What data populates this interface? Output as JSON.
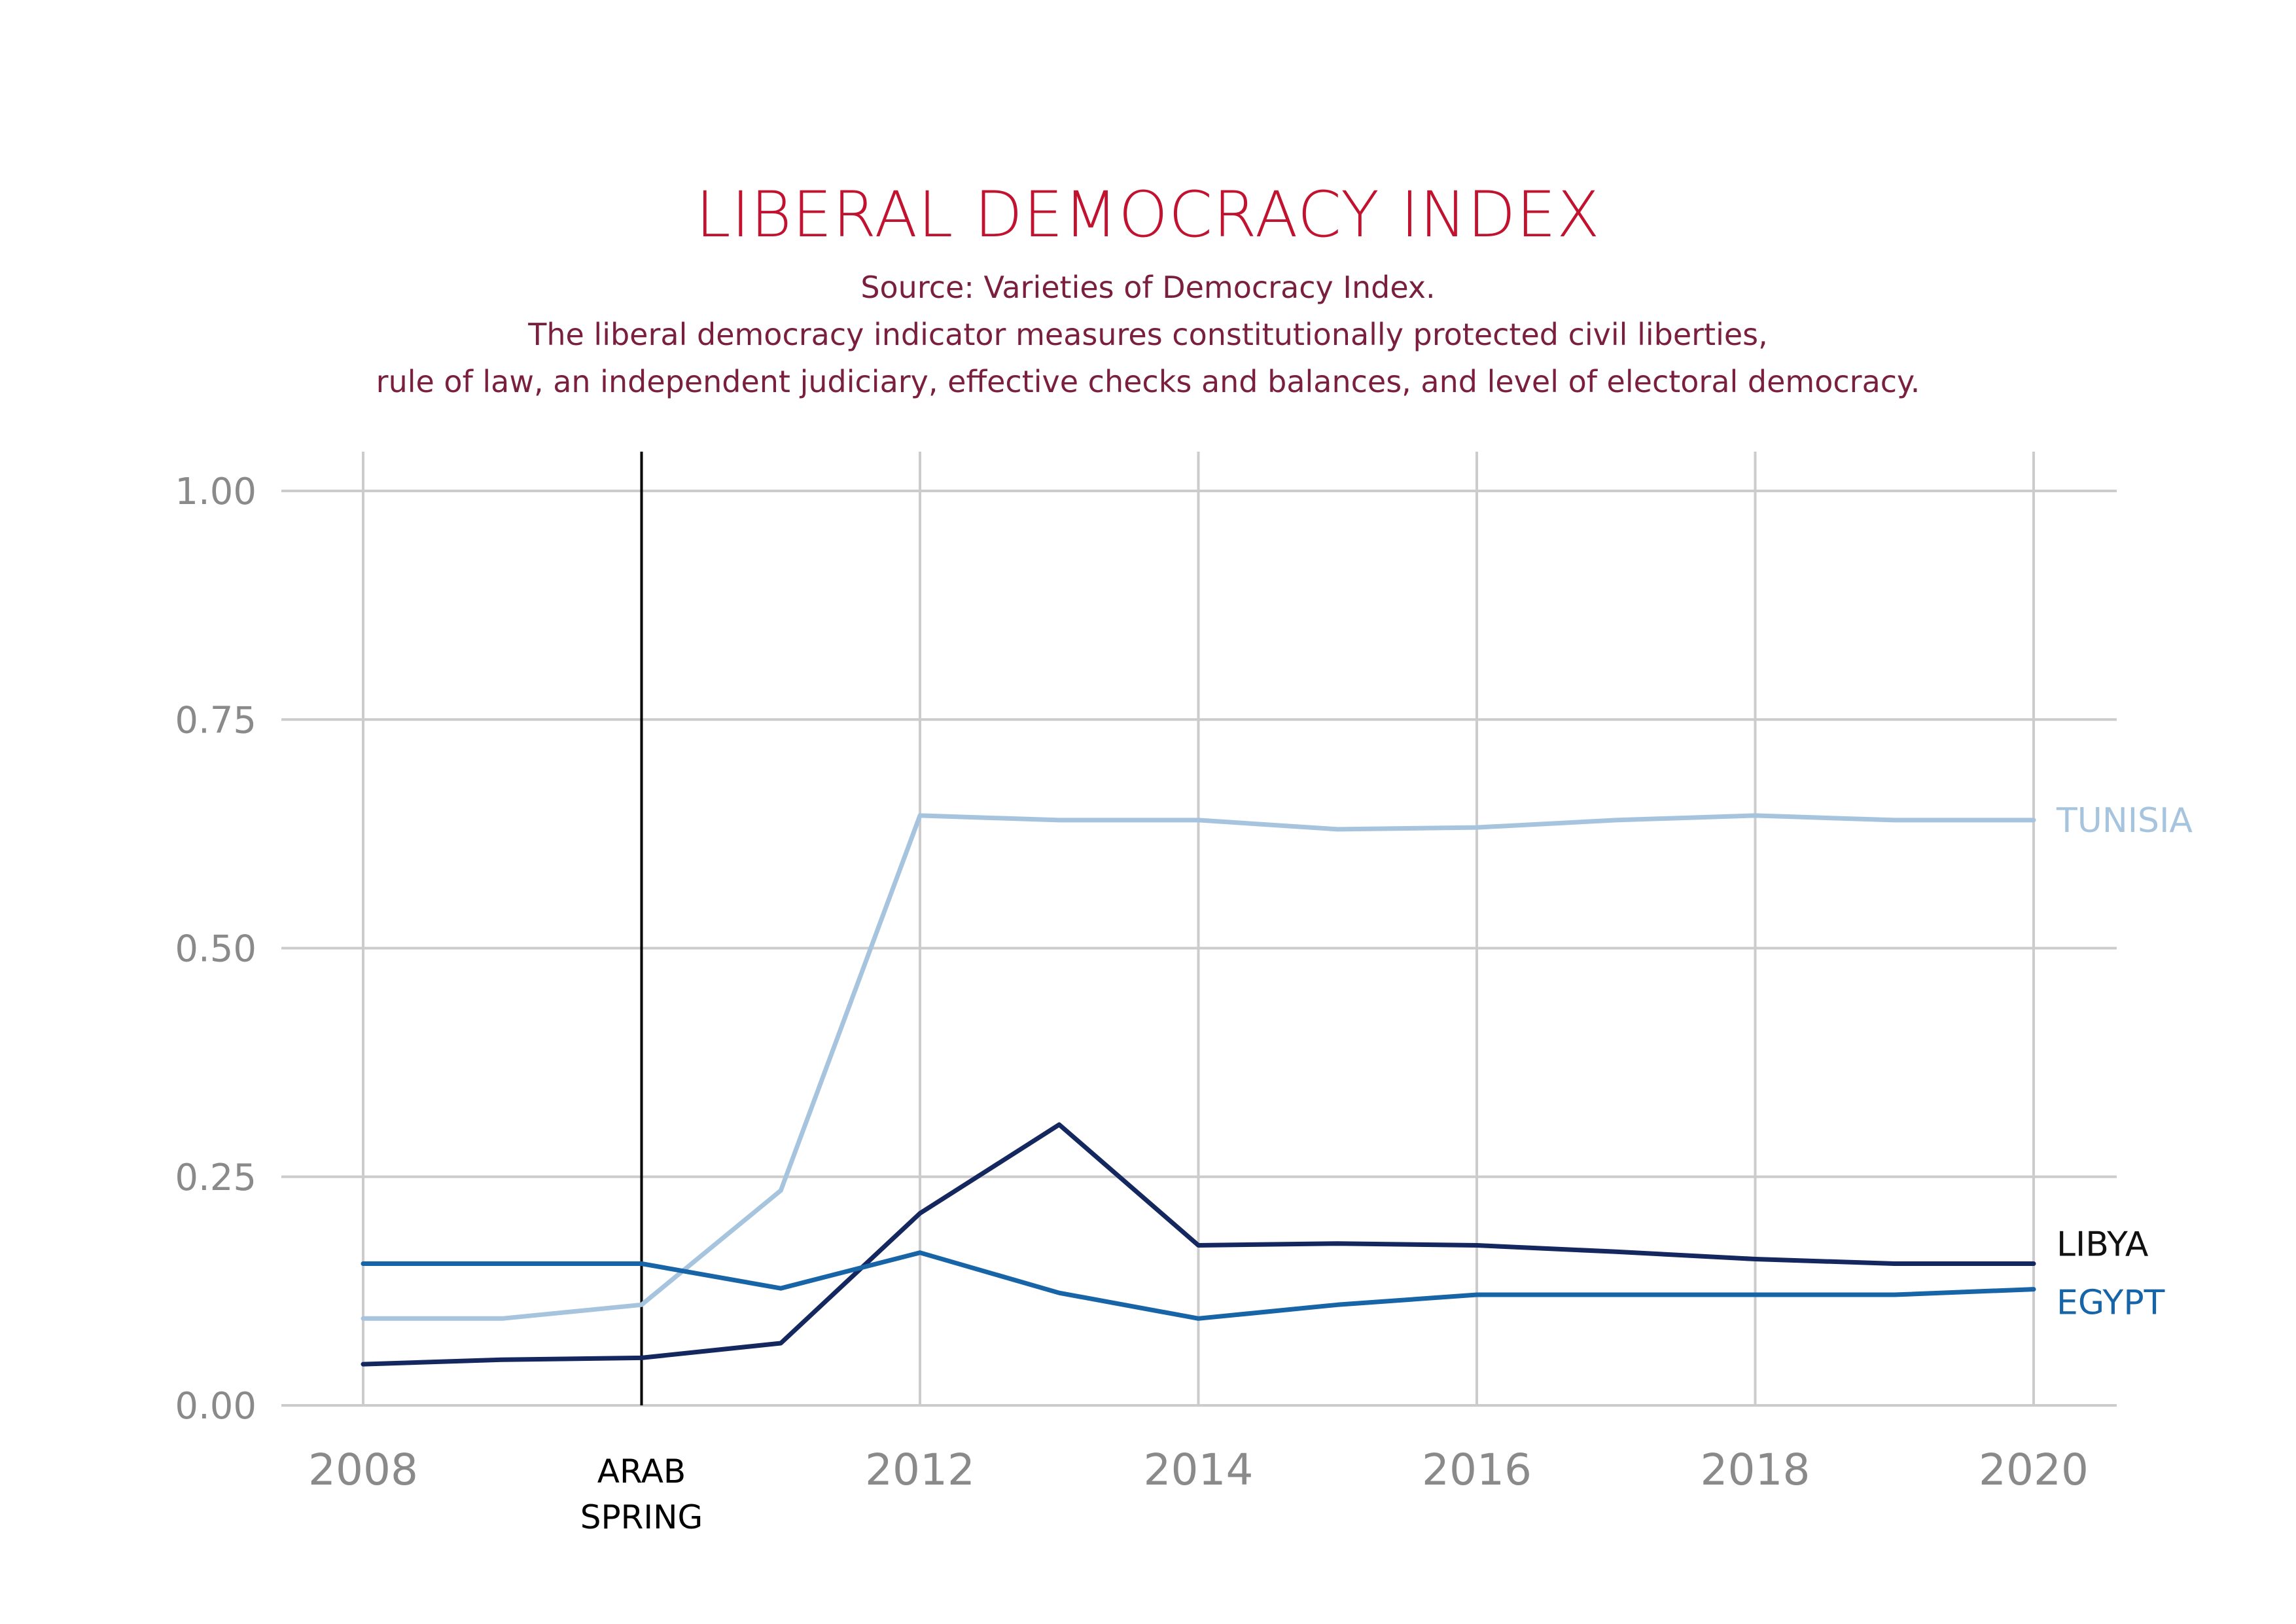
{
  "chart_data": {
    "type": "line",
    "title": "LIBERAL DEMOCRACY INDEX",
    "subtitle": [
      "Source: Varieties of Democracy Index.",
      "The liberal democracy indicator measures constitutionally protected civil liberties,",
      "rule of law, an independent judiciary, effective checks and balances, and level of electoral democracy."
    ],
    "xlim": [
      2008,
      2020
    ],
    "ylim": [
      0,
      1
    ],
    "x_ticks": [
      2008,
      2012,
      2014,
      2016,
      2018,
      2020
    ],
    "x_tick_labels": [
      "2008",
      "2012",
      "2014",
      "2016",
      "2018",
      "2020"
    ],
    "y_ticks": [
      0,
      0.25,
      0.5,
      0.75,
      1.0
    ],
    "y_tick_labels": [
      "0.00",
      "0.25",
      "0.50",
      "0.75",
      "1.00"
    ],
    "grid": true,
    "annotation": {
      "x": 2010,
      "lines": [
        "ARAB",
        "SPRING"
      ]
    },
    "x": [
      2008,
      2009,
      2010,
      2011,
      2012,
      2013,
      2014,
      2015,
      2016,
      2017,
      2018,
      2019,
      2020
    ],
    "series": [
      {
        "name": "TUNISIA",
        "color": "#a7c4df",
        "values": [
          0.095,
          0.095,
          0.11,
          0.235,
          0.645,
          0.64,
          0.64,
          0.63,
          0.632,
          0.64,
          0.645,
          0.64,
          0.64
        ]
      },
      {
        "name": "LIBYA",
        "color": "#14285f",
        "label_color": "#111111",
        "values": [
          0.045,
          0.05,
          0.052,
          0.068,
          0.21,
          0.307,
          0.175,
          0.177,
          0.175,
          0.168,
          0.16,
          0.155,
          0.155
        ]
      },
      {
        "name": "EGYPT",
        "color": "#1764a7",
        "values": [
          0.155,
          0.155,
          0.155,
          0.128,
          0.167,
          0.123,
          0.095,
          0.11,
          0.121,
          0.121,
          0.121,
          0.121,
          0.127
        ]
      }
    ]
  }
}
